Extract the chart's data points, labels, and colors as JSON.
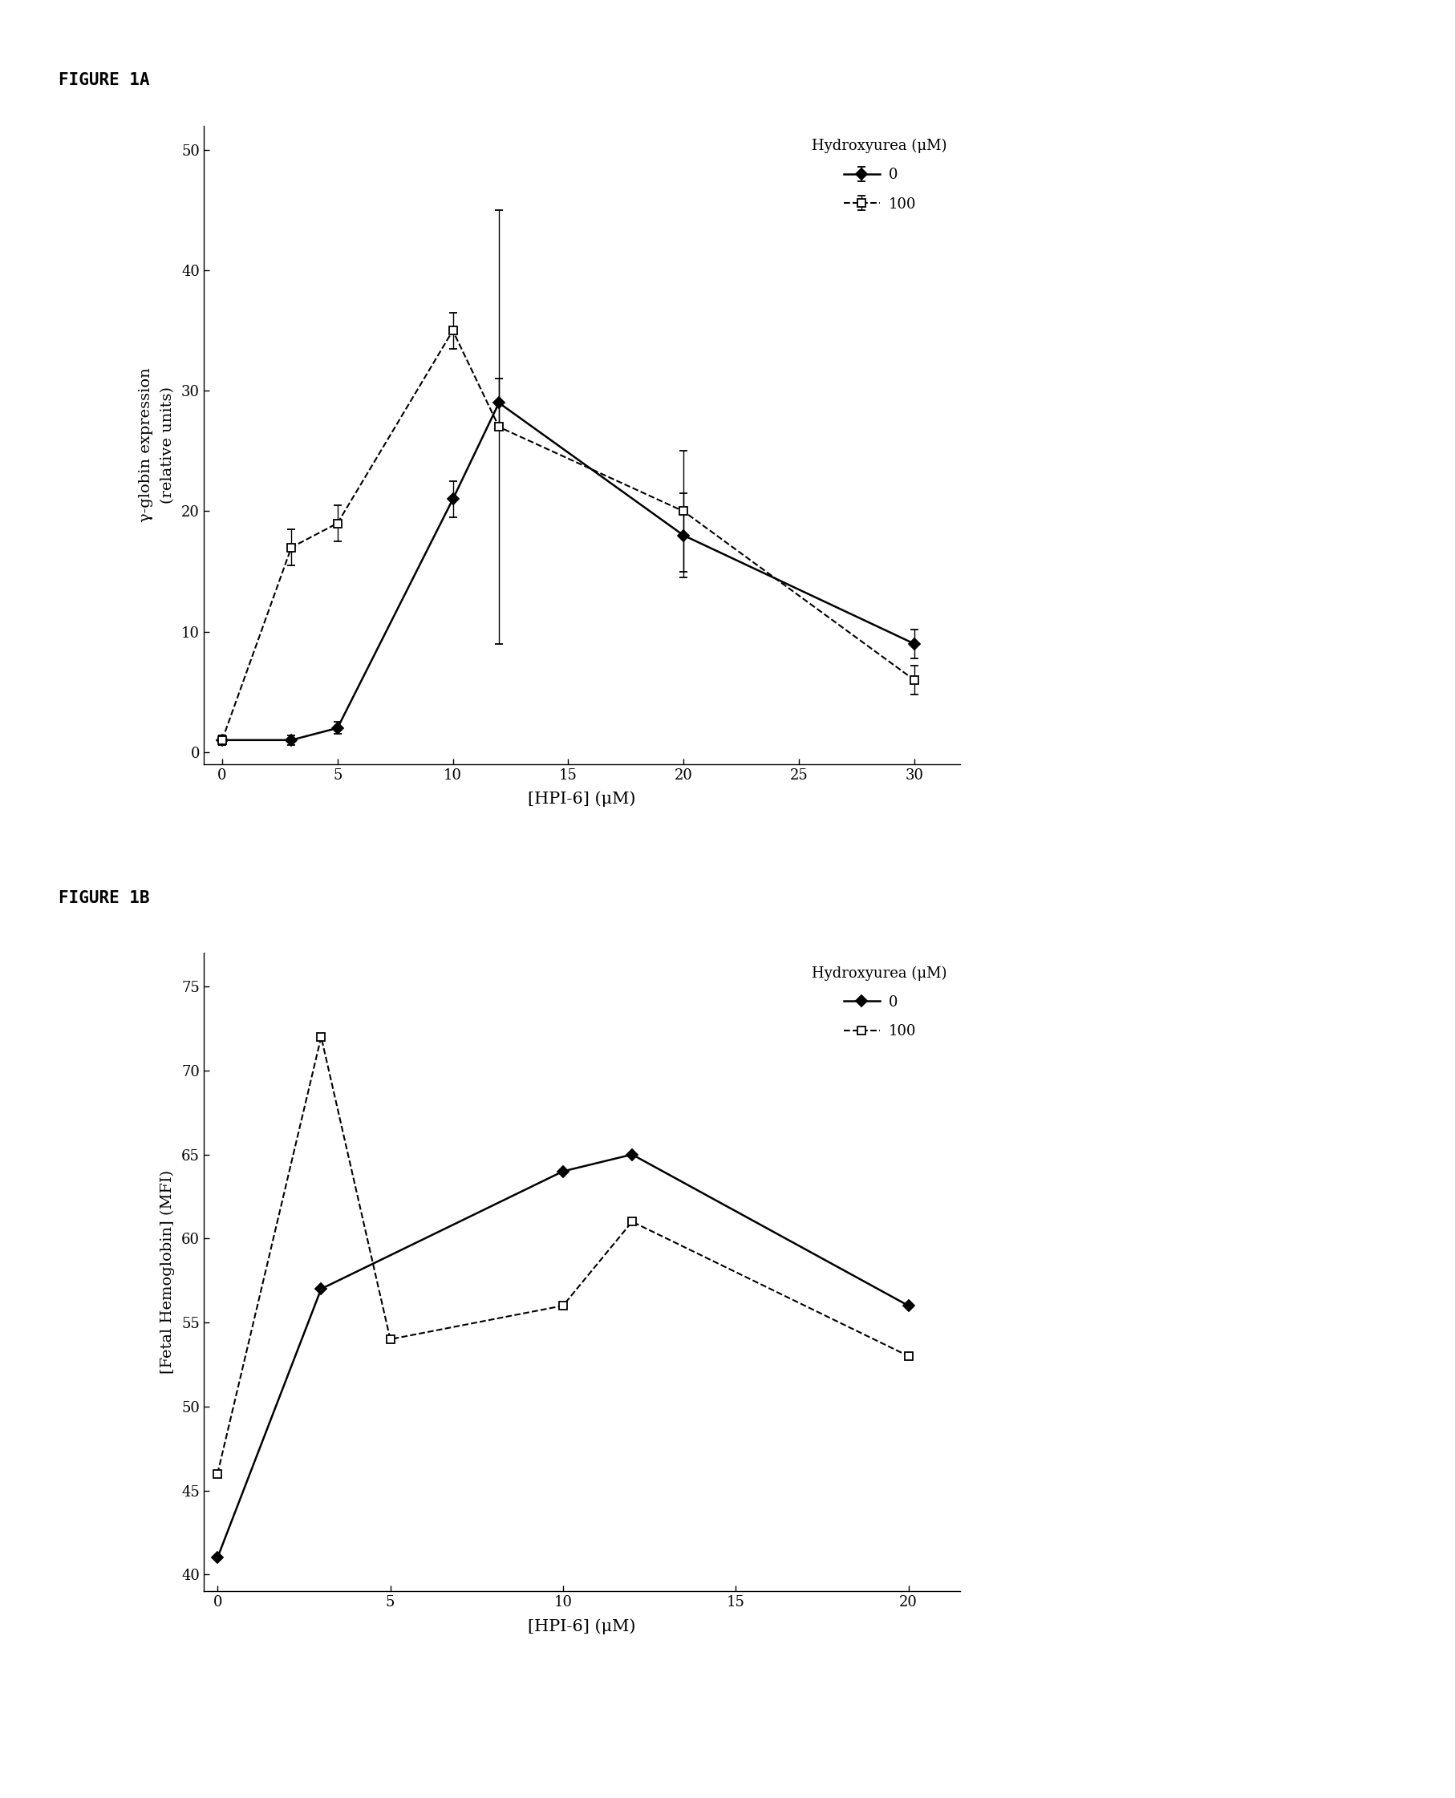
{
  "fig1a": {
    "title": "FIGURE 1A",
    "xlabel": "[HPI-6] (μM)",
    "ylabel": "γ-globin expression\n(relative units)",
    "xlim": [
      -0.8,
      32
    ],
    "ylim": [
      -1,
      52
    ],
    "xticks": [
      0,
      5,
      10,
      15,
      20,
      25,
      30
    ],
    "yticks": [
      0,
      10,
      20,
      30,
      40,
      50
    ],
    "legend_title": "Hydroxyurea (μM)",
    "series": [
      {
        "label": "0",
        "x": [
          0,
          3,
          5,
          10,
          12,
          20,
          30
        ],
        "y": [
          1,
          1,
          2,
          21,
          29,
          18,
          9
        ],
        "yerr": [
          0.4,
          0.4,
          0.5,
          1.5,
          2.0,
          3.5,
          1.2
        ],
        "linestyle": "-",
        "marker": "D",
        "markersize": 7,
        "color": "#000000",
        "linewidth": 1.8,
        "fillstyle": "full"
      },
      {
        "label": "100",
        "x": [
          0,
          3,
          5,
          10,
          12,
          20,
          30
        ],
        "y": [
          1,
          17,
          19,
          35,
          27,
          20,
          6
        ],
        "yerr": [
          0.4,
          1.5,
          1.5,
          1.5,
          18.0,
          5.0,
          1.2
        ],
        "linestyle": "--",
        "marker": "s",
        "markersize": 7,
        "color": "#000000",
        "linewidth": 1.5,
        "fillstyle": "none"
      }
    ]
  },
  "fig1b": {
    "title": "FIGURE 1B",
    "xlabel": "[HPI-6] (μM)",
    "ylabel": "[Fetal Hemoglobin] (MFI)",
    "xlim": [
      -0.4,
      21.5
    ],
    "ylim": [
      39,
      77
    ],
    "xticks": [
      0,
      5,
      10,
      15,
      20
    ],
    "yticks": [
      40,
      45,
      50,
      55,
      60,
      65,
      70,
      75
    ],
    "legend_title": "Hydroxyurea (μM)",
    "series": [
      {
        "label": "0",
        "x": [
          0,
          3,
          10,
          12,
          20
        ],
        "y": [
          41,
          57,
          64,
          65,
          56
        ],
        "yerr": null,
        "linestyle": "-",
        "marker": "D",
        "markersize": 7,
        "color": "#000000",
        "linewidth": 1.8,
        "fillstyle": "full"
      },
      {
        "label": "100",
        "x": [
          0,
          3,
          5,
          10,
          12,
          20
        ],
        "y": [
          46,
          72,
          54,
          56,
          61,
          53
        ],
        "yerr": null,
        "linestyle": "--",
        "marker": "s",
        "markersize": 7,
        "color": "#000000",
        "linewidth": 1.5,
        "fillstyle": "none"
      }
    ]
  },
  "background_color": "#ffffff",
  "font_family": "DejaVu Serif"
}
